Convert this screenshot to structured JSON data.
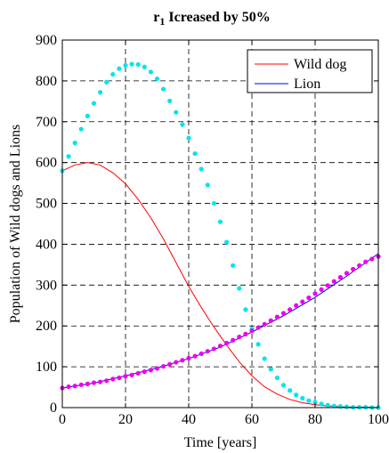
{
  "chart_data": {
    "type": "line",
    "title": {
      "main": "r",
      "sub": "1",
      "rest": " Icreased by 50%"
    },
    "xlabel": "Time [years]",
    "ylabel": "Population of Wild dogs and Lions",
    "xlim": [
      0,
      100
    ],
    "ylim": [
      0,
      900
    ],
    "xticks": [
      0,
      20,
      40,
      60,
      80,
      100
    ],
    "yticks": [
      0,
      100,
      200,
      300,
      400,
      500,
      600,
      700,
      800,
      900
    ],
    "grid": true,
    "legend_position": "top-right",
    "legend": [
      {
        "name": "Wild dog",
        "color": "#ff0000"
      },
      {
        "name": "Lion",
        "color": "#0000ff"
      }
    ],
    "series": [
      {
        "name": "Wild dog",
        "style": "line",
        "color": "#ff0000",
        "x": [
          0,
          4,
          8,
          12,
          16,
          20,
          24,
          28,
          32,
          36,
          40,
          44,
          48,
          52,
          56,
          60,
          64,
          68,
          72,
          76,
          80,
          84,
          88,
          92,
          96,
          100
        ],
        "y": [
          580,
          594,
          600,
          594,
          575,
          548,
          510,
          465,
          413,
          355,
          297,
          245,
          197,
          153,
          112,
          78,
          51,
          33,
          20,
          12,
          7,
          4,
          2,
          1,
          1,
          0
        ]
      },
      {
        "name": "Lion",
        "style": "line",
        "color": "#0000ff",
        "x": [
          0,
          10,
          20,
          30,
          40,
          50,
          60,
          70,
          80,
          90,
          100
        ],
        "y": [
          48,
          60,
          78,
          97,
          120,
          148,
          185,
          225,
          270,
          322,
          377
        ]
      },
      {
        "name": "",
        "style": "dots",
        "color": "#00e5ee",
        "x": [
          0,
          2,
          4,
          6,
          8,
          10,
          12,
          14,
          16,
          18,
          20,
          22,
          24,
          26,
          28,
          30,
          32,
          34,
          36,
          38,
          40,
          42,
          44,
          46,
          48,
          50,
          52,
          54,
          56,
          58,
          60,
          62,
          64,
          66,
          68,
          70,
          72,
          74,
          76,
          78,
          80,
          82,
          84,
          86,
          88,
          90,
          92,
          94,
          96,
          98,
          100
        ],
        "y": [
          580,
          615,
          648,
          682,
          714,
          745,
          772,
          797,
          816,
          830,
          838,
          841,
          840,
          834,
          822,
          805,
          780,
          751,
          723,
          693,
          660,
          622,
          584,
          545,
          500,
          455,
          405,
          348,
          292,
          240,
          193,
          155,
          120,
          94,
          73,
          55,
          42,
          31,
          23,
          17,
          13,
          9,
          6,
          4,
          3,
          2,
          1,
          1,
          1,
          0,
          0
        ]
      },
      {
        "name": "",
        "style": "dots",
        "color": "#ee00ee",
        "x": [
          0,
          2,
          4,
          6,
          8,
          10,
          12,
          14,
          16,
          18,
          20,
          22,
          24,
          26,
          28,
          30,
          32,
          34,
          36,
          38,
          40,
          42,
          44,
          46,
          48,
          50,
          52,
          54,
          56,
          58,
          60,
          62,
          64,
          66,
          68,
          70,
          72,
          74,
          76,
          78,
          80,
          82,
          84,
          86,
          88,
          90,
          92,
          94,
          96,
          98,
          100
        ],
        "y": [
          48,
          51,
          53,
          56,
          58,
          61,
          63,
          66,
          70,
          73,
          77,
          80,
          84,
          88,
          92,
          96,
          101,
          106,
          111,
          116,
          121,
          126,
          132,
          138,
          144,
          151,
          158,
          165,
          173,
          180,
          188,
          196,
          204,
          213,
          222,
          231,
          240,
          250,
          259,
          269,
          279,
          289,
          299,
          309,
          319,
          329,
          339,
          348,
          357,
          364,
          370
        ]
      }
    ]
  }
}
